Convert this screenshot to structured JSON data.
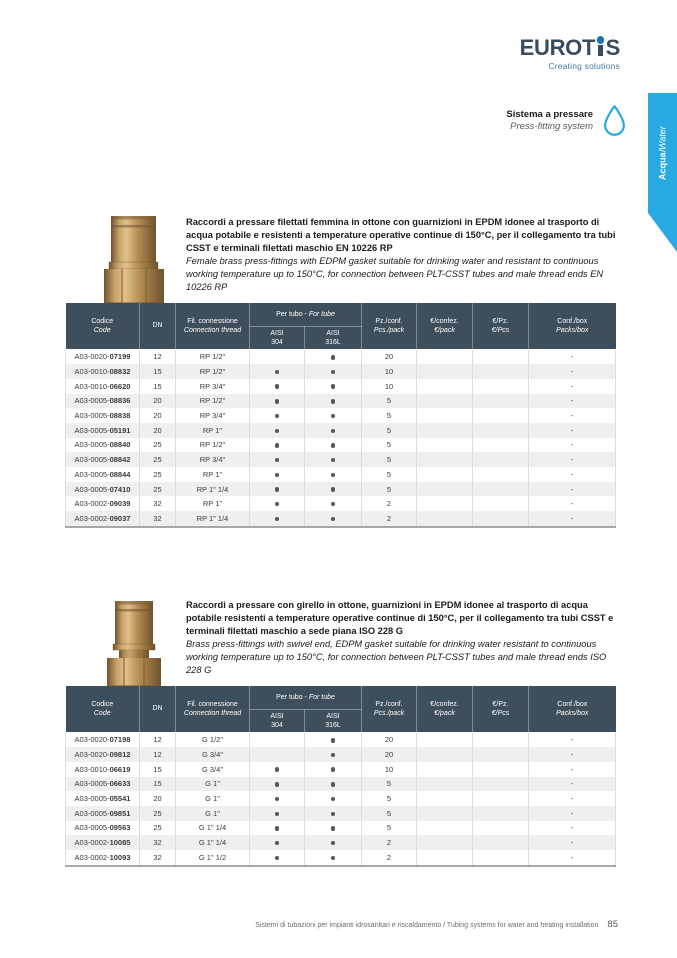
{
  "brand": {
    "logo_pre": "EUROT",
    "logo_post": "S",
    "tagline": "Creating solutions"
  },
  "side_tab": {
    "label_it": "Acqua",
    "separator": " / ",
    "label_en": "Water"
  },
  "system": {
    "label_it": "Sistema a pressare",
    "label_en": "Press-fitting system"
  },
  "colors": {
    "accent_blue": "#29a9e1",
    "header_slate": "#3f4e5b",
    "logo_dark": "#3a4d60",
    "brass": "#b68d55"
  },
  "table_header": {
    "code_it": "Codice",
    "code_en": "Code",
    "dn": "DN",
    "thread_it": "Fil. connessione",
    "thread_en": "Connection thread",
    "tube_it": "Per tubo - ",
    "tube_en": "For tube",
    "aisi304_l1": "AISI",
    "aisi304_l2": "304",
    "aisi316_l1": "AISI",
    "aisi316_l2": "316L",
    "pack_it": "Pz./conf.",
    "pack_en": "Pcs./pack",
    "eurpack_it": "€/confez.",
    "eurpack_en": "€/pack",
    "eurpc_it": "€/Pz.",
    "eurpc_en": "€/Pcs",
    "box_it": "Conf./box",
    "box_en": "Packs/box"
  },
  "sections": [
    {
      "desc_it": "Raccordi a pressare filettati femmina in ottone con guarnizioni in EPDM idonee al trasporto di acqua potabile e resistenti a temperature operative continue di 150°C, per il collegamento tra tubi CSST e terminali filettati maschio EN 10226 RP",
      "desc_en": "Female brass press-fittings with EDPM gasket suitable for drinking water and resistant to continuous working temperature up to 150°C, for connection between PLT-CSST tubes and male thread ends EN 10226 RP",
      "rows": [
        {
          "code_prefix": "A03-0020-",
          "code_num": "07199",
          "dn": "12",
          "thread": "RP 1/2\"",
          "aisi304": false,
          "aisi316": true,
          "pack": "20",
          "eur_pack": "",
          "eur_pc": "",
          "box": "-"
        },
        {
          "code_prefix": "A03-0010-",
          "code_num": "08832",
          "dn": "15",
          "thread": "RP 1/2\"",
          "aisi304": true,
          "aisi316": true,
          "pack": "10",
          "eur_pack": "",
          "eur_pc": "",
          "box": "-"
        },
        {
          "code_prefix": "A03-0010-",
          "code_num": "06620",
          "dn": "15",
          "thread": "RP 3/4\"",
          "aisi304": true,
          "aisi316": true,
          "pack": "10",
          "eur_pack": "",
          "eur_pc": "",
          "box": "-"
        },
        {
          "code_prefix": "A03-0005-",
          "code_num": "08836",
          "dn": "20",
          "thread": "RP 1/2\"",
          "aisi304": true,
          "aisi316": true,
          "pack": "5",
          "eur_pack": "",
          "eur_pc": "",
          "box": "-"
        },
        {
          "code_prefix": "A03-0005-",
          "code_num": "08838",
          "dn": "20",
          "thread": "RP 3/4\"",
          "aisi304": true,
          "aisi316": true,
          "pack": "5",
          "eur_pack": "",
          "eur_pc": "",
          "box": "-"
        },
        {
          "code_prefix": "A03-0005-",
          "code_num": "05191",
          "dn": "20",
          "thread": "RP 1\"",
          "aisi304": true,
          "aisi316": true,
          "pack": "5",
          "eur_pack": "",
          "eur_pc": "",
          "box": "-"
        },
        {
          "code_prefix": "A03-0005-",
          "code_num": "08840",
          "dn": "25",
          "thread": "RP 1/2\"",
          "aisi304": true,
          "aisi316": true,
          "pack": "5",
          "eur_pack": "",
          "eur_pc": "",
          "box": "-"
        },
        {
          "code_prefix": "A03-0005-",
          "code_num": "08842",
          "dn": "25",
          "thread": "RP 3/4\"",
          "aisi304": true,
          "aisi316": true,
          "pack": "5",
          "eur_pack": "",
          "eur_pc": "",
          "box": "-"
        },
        {
          "code_prefix": "A03-0005-",
          "code_num": "08844",
          "dn": "25",
          "thread": "RP 1\"",
          "aisi304": true,
          "aisi316": true,
          "pack": "5",
          "eur_pack": "",
          "eur_pc": "",
          "box": "-"
        },
        {
          "code_prefix": "A03-0005-",
          "code_num": "07410",
          "dn": "25",
          "thread": "RP 1\" 1/4",
          "aisi304": true,
          "aisi316": true,
          "pack": "5",
          "eur_pack": "",
          "eur_pc": "",
          "box": "-"
        },
        {
          "code_prefix": "A03-0002-",
          "code_num": "09039",
          "dn": "32",
          "thread": "RP 1\"",
          "aisi304": true,
          "aisi316": true,
          "pack": "2",
          "eur_pack": "",
          "eur_pc": "",
          "box": "-"
        },
        {
          "code_prefix": "A03-0002-",
          "code_num": "09037",
          "dn": "32",
          "thread": "RP 1\" 1/4",
          "aisi304": true,
          "aisi316": true,
          "pack": "2",
          "eur_pack": "",
          "eur_pc": "",
          "box": "-"
        }
      ]
    },
    {
      "desc_it": "Raccordi a pressare con girello in ottone, guarnizioni in EPDM idonee al trasporto di acqua potabile resistenti a temperature operative continue di 150°C, per il collegamento tra tubi CSST e terminali filettati maschio a sede piana ISO 228 G",
      "desc_en": "Brass press-fittings with swivel end, EDPM gasket suitable for drinking water resistant to continuous working temperature up to 150°C, for connection between PLT-CSST tubes and male thread ends ISO 228 G",
      "rows": [
        {
          "code_prefix": "A03-0020-",
          "code_num": "07198",
          "dn": "12",
          "thread": "G 1/2\"",
          "aisi304": false,
          "aisi316": true,
          "pack": "20",
          "eur_pack": "",
          "eur_pc": "",
          "box": "-"
        },
        {
          "code_prefix": "A03-0020-",
          "code_num": "09812",
          "dn": "12",
          "thread": "G 3/4\"",
          "aisi304": false,
          "aisi316": true,
          "pack": "20",
          "eur_pack": "",
          "eur_pc": "",
          "box": "-"
        },
        {
          "code_prefix": "A03-0010-",
          "code_num": "06619",
          "dn": "15",
          "thread": "G 3/4\"",
          "aisi304": true,
          "aisi316": true,
          "pack": "10",
          "eur_pack": "",
          "eur_pc": "",
          "box": "-"
        },
        {
          "code_prefix": "A03-0005-",
          "code_num": "06633",
          "dn": "15",
          "thread": "G 1\"",
          "aisi304": true,
          "aisi316": true,
          "pack": "5",
          "eur_pack": "",
          "eur_pc": "",
          "box": "-"
        },
        {
          "code_prefix": "A03-0005-",
          "code_num": "05541",
          "dn": "20",
          "thread": "G 1\"",
          "aisi304": true,
          "aisi316": true,
          "pack": "5",
          "eur_pack": "",
          "eur_pc": "",
          "box": "-"
        },
        {
          "code_prefix": "A03-0005-",
          "code_num": "09851",
          "dn": "25",
          "thread": "G 1\"",
          "aisi304": true,
          "aisi316": true,
          "pack": "5",
          "eur_pack": "",
          "eur_pc": "",
          "box": "-"
        },
        {
          "code_prefix": "A03-0005-",
          "code_num": "09563",
          "dn": "25",
          "thread": "G 1\" 1/4",
          "aisi304": true,
          "aisi316": true,
          "pack": "5",
          "eur_pack": "",
          "eur_pc": "",
          "box": "-"
        },
        {
          "code_prefix": "A03-0002-",
          "code_num": "10085",
          "dn": "32",
          "thread": "G 1\" 1/4",
          "aisi304": true,
          "aisi316": true,
          "pack": "2",
          "eur_pack": "",
          "eur_pc": "",
          "box": "-"
        },
        {
          "code_prefix": "A03-0002-",
          "code_num": "10093",
          "dn": "32",
          "thread": "G 1\" 1/2",
          "aisi304": true,
          "aisi316": true,
          "pack": "2",
          "eur_pack": "",
          "eur_pc": "",
          "box": "-"
        }
      ]
    }
  ],
  "footer": {
    "text": "Sistemi di tubazioni per impianti idrosanitari e riscaldamento / Tubing systems for water and heating installation",
    "page": "85"
  }
}
